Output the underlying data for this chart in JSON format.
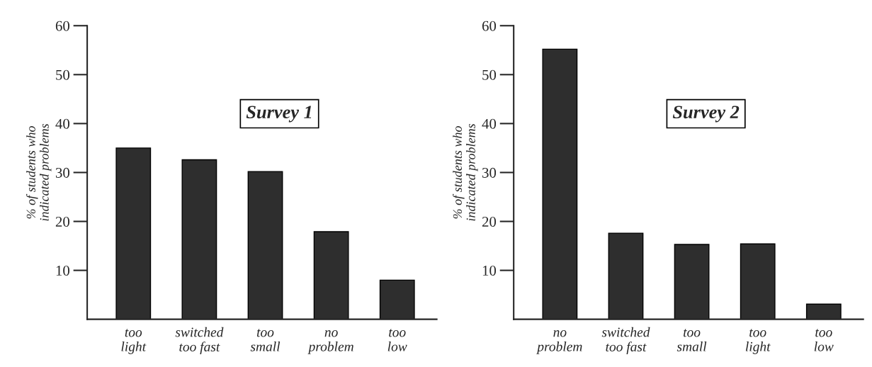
{
  "chart_data": [
    {
      "type": "bar",
      "categories": [
        "too\nlight",
        "switched\ntoo fast",
        "too\nsmall",
        "no\nproblem",
        "too\nlow"
      ],
      "values": [
        35.0,
        32.6,
        30.2,
        17.9,
        8.0
      ],
      "color": "#2e2e2e",
      "ylabel": "% of students who\nindicated problems",
      "ylim": [
        0,
        60
      ],
      "yticks": [
        10,
        20,
        30,
        40,
        50,
        60
      ],
      "annotations": [
        "Survey 1"
      ],
      "grid": false,
      "legend": false
    },
    {
      "type": "bar",
      "categories": [
        "no\nproblem",
        "switched\ntoo fast",
        "too\nsmall",
        "too\nlight",
        "too\nlow"
      ],
      "values": [
        55.2,
        17.6,
        15.3,
        15.4,
        3.1
      ],
      "color": "#2e2e2e",
      "ylabel": "% of students who\nindicated problems",
      "ylim": [
        0,
        60
      ],
      "yticks": [
        10,
        20,
        30,
        40,
        50,
        60
      ],
      "annotations": [
        "Survey 2"
      ],
      "grid": false,
      "legend": false
    }
  ]
}
